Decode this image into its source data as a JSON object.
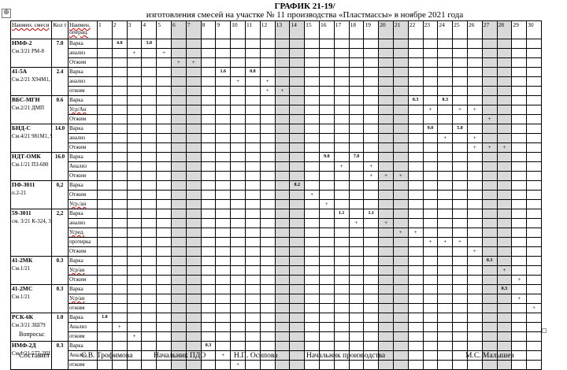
{
  "doc": {
    "title": "ГРАФИК 21-19/",
    "subtitle": "изготовления смесей на участке № 11 производства «Пластмассы» в ноябре 2021 года",
    "move_handle_icon": "⊕"
  },
  "table": {
    "headers": {
      "name": "Наимен. смеси",
      "qty": "Кол т",
      "op": "Наимен. операц."
    },
    "days": [
      "1",
      "2",
      "3",
      "4",
      "5",
      "6",
      "7",
      "8",
      "9",
      "10",
      "11",
      "12",
      "13",
      "14",
      "15",
      "16",
      "17",
      "18",
      "19",
      "20",
      "21",
      "22",
      "23",
      "24",
      "25",
      "26",
      "27",
      "28",
      "29",
      "30"
    ],
    "weekend_days": [
      6,
      7,
      13,
      14,
      20,
      21,
      27,
      28
    ],
    "shade_color": "#d9d9d9",
    "groups": [
      {
        "name": "НМФ-2",
        "sub": "См.3/21 РМ-8",
        "qty": "7.0",
        "ops": [
          {
            "label": "Варка",
            "cells": {
              "2": "4.0",
              "4": "3.0"
            }
          },
          {
            "label": "анализ",
            "cells": {
              "3": "+",
              "5": "+"
            }
          },
          {
            "label": "Отжим",
            "cells": {
              "6": "+",
              "7": "+"
            }
          }
        ]
      },
      {
        "name": "41-5А",
        "sub": "См.2/21 Х94М1,188М",
        "qty": "2.4",
        "ops": [
          {
            "label": "Варка",
            "cells": {
              "9": "1.6",
              "11": "0.8"
            }
          },
          {
            "label": "анализ",
            "cells": {
              "10": "+",
              "12": "+"
            }
          },
          {
            "label": "отжим",
            "cells": {
              "12": "+",
              "13": "+"
            }
          }
        ]
      },
      {
        "name": "ВБС-МГН",
        "sub": "См.2/21 ДМП",
        "qty": "0.6",
        "ops": [
          {
            "label": "Варка",
            "cells": {
              "22": "0.3",
              "24": "0.3"
            }
          },
          {
            "label": "Уср/Ан",
            "cells": {
              "23": "+",
              "25": "+",
              "26": "+"
            }
          },
          {
            "label": "Отжим",
            "cells": {
              "27": "+"
            }
          }
        ]
      },
      {
        "name": "БНД-С",
        "sub": "См.4/21 981М1, 981М5",
        "qty": "14.0",
        "ops": [
          {
            "label": "Варка",
            "cells": {
              "23": "9.0",
              "25": "5.0"
            }
          },
          {
            "label": "анализ",
            "cells": {
              "24": "+",
              "26": "+"
            }
          },
          {
            "label": "Отжим",
            "cells": {
              "26": "+",
              "27": "+",
              "28": "+"
            }
          }
        ]
      },
      {
        "name": "НДТ-ОМК",
        "sub": "См.1/21 ПЗ-680",
        "qty": "16.0",
        "ops": [
          {
            "label": "Варка",
            "cells": {
              "16": "9.0",
              "18": "7.0"
            }
          },
          {
            "label": "Анализ",
            "cells": {
              "17": "+",
              "19": "+"
            }
          },
          {
            "label": "Отжим",
            "cells": {
              "19": "+",
              "20": "+",
              "21": "+"
            }
          }
        ]
      },
      {
        "name": "ПФ-3011",
        "sub": "п.2-21",
        "qty": "0,2",
        "ops": [
          {
            "label": "Варка",
            "cells": {
              "14": "0.2"
            }
          },
          {
            "label": "Отжим",
            "cells": {
              "15": "+"
            }
          },
          {
            "label": "Уср./ан",
            "cells": {
              "16": "+"
            }
          }
        ]
      },
      {
        "name": "59-3011",
        "sub": "см. 3/21 К-324, 325, 326, 327",
        "qty": "2,2",
        "ops": [
          {
            "label": "Варка",
            "cells": {
              "17": "1.1",
              "19": "1.1"
            }
          },
          {
            "label": "анализ",
            "cells": {
              "18": "+",
              "20": "+"
            }
          },
          {
            "label": "Усред.",
            "cells": {
              "21": "+",
              "22": "+"
            }
          },
          {
            "label": "протирка",
            "cells": {
              "23": "+",
              "24": "+",
              "25": "+"
            }
          },
          {
            "label": "Отжим",
            "cells": {
              "26": "+"
            }
          }
        ]
      },
      {
        "name": "41-2МК",
        "sub": "См.1/21",
        "qty": "0.3",
        "ops": [
          {
            "label": "Варка",
            "cells": {
              "27": "0.3"
            }
          },
          {
            "label": "Уср/ан",
            "cells": {
              "28": "+"
            }
          },
          {
            "label": "Отжим",
            "cells": {
              "29": "+"
            }
          }
        ]
      },
      {
        "name": "41-2МС",
        "sub": "См.1/21",
        "qty": "0.3",
        "ops": [
          {
            "label": "Варка",
            "cells": {
              "28": "0.3"
            }
          },
          {
            "label": "Уср/ан",
            "cells": {
              "29": "+"
            }
          },
          {
            "label": "отжим",
            "cells": {
              "30": "+"
            }
          }
        ]
      },
      {
        "name": "РСК-6К",
        "sub": "См.3/21 3Ш79",
        "qty": "1.0",
        "ops": [
          {
            "label": "Варка",
            "cells": {
              "1": "1.0"
            }
          },
          {
            "label": "Анализ",
            "cells": {
              "2": "+"
            }
          },
          {
            "label": "отжим",
            "cells": {
              "3": "+"
            }
          }
        ]
      },
      {
        "name": "НМФ-2Д",
        "sub": "См.1/21 577-2Ш",
        "qty": "0.3",
        "ops": [
          {
            "label": "Варка",
            "cells": {
              "8": "0.3"
            }
          },
          {
            "label": "Анализ",
            "cells": {
              "9": "+"
            }
          },
          {
            "label": "отжим",
            "cells": {
              "10": "+"
            }
          }
        ]
      }
    ]
  },
  "footer": {
    "questions_label": "Вопросы:",
    "compiled_label": "Составил",
    "compiled_name": "С.В. Трофимова",
    "pdo_label": "Начальник ПДО",
    "pdo_name": "Н.П. Осипова",
    "prod_label": "Начальник производства",
    "prod_name": "М.С. Малышев"
  }
}
